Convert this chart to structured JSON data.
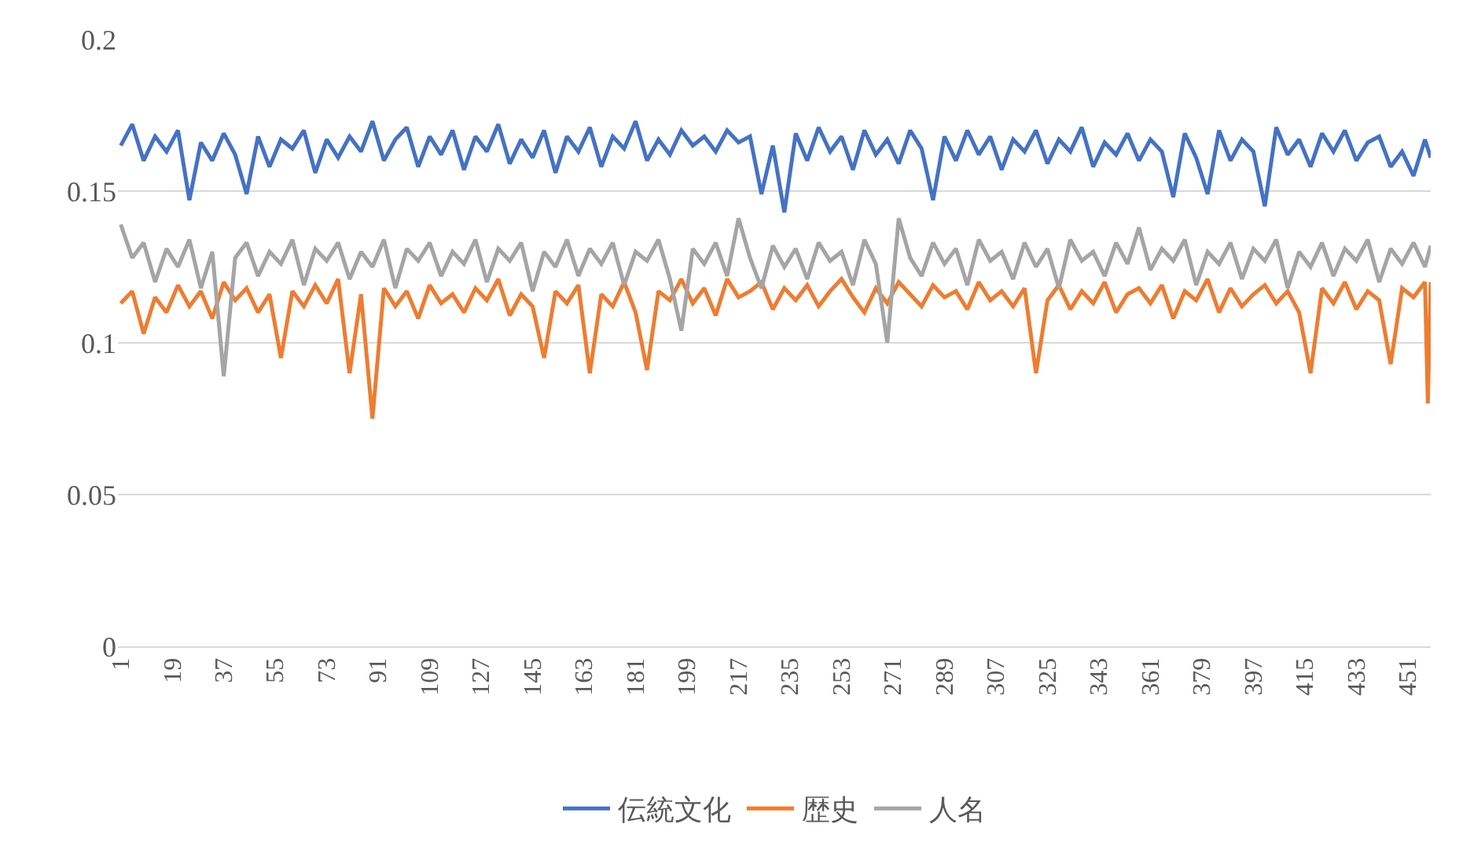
{
  "chart_data": {
    "type": "line",
    "x": [
      1,
      5,
      9,
      13,
      17,
      21,
      25,
      29,
      33,
      37,
      41,
      45,
      49,
      53,
      57,
      61,
      65,
      69,
      73,
      77,
      81,
      85,
      89,
      93,
      97,
      101,
      105,
      109,
      113,
      117,
      121,
      125,
      129,
      133,
      137,
      141,
      145,
      149,
      153,
      157,
      161,
      165,
      169,
      173,
      177,
      181,
      185,
      189,
      193,
      197,
      201,
      205,
      209,
      213,
      217,
      221,
      225,
      229,
      233,
      237,
      241,
      245,
      249,
      253,
      257,
      261,
      265,
      269,
      273,
      277,
      281,
      285,
      289,
      293,
      297,
      301,
      305,
      309,
      313,
      317,
      321,
      325,
      329,
      333,
      337,
      341,
      345,
      349,
      353,
      357,
      361,
      365,
      369,
      373,
      377,
      381,
      385,
      389,
      393,
      397,
      401,
      405,
      409,
      413,
      417,
      421,
      425,
      429,
      433,
      437,
      441,
      445,
      449,
      453,
      457,
      459
    ],
    "series": [
      {
        "name": "伝統文化",
        "color": "#4472c4",
        "values": [
          0.165,
          0.172,
          0.16,
          0.168,
          0.163,
          0.17,
          0.147,
          0.166,
          0.16,
          0.169,
          0.162,
          0.149,
          0.168,
          0.158,
          0.167,
          0.164,
          0.17,
          0.156,
          0.167,
          0.161,
          0.168,
          0.163,
          0.173,
          0.16,
          0.167,
          0.171,
          0.158,
          0.168,
          0.162,
          0.17,
          0.157,
          0.168,
          0.163,
          0.172,
          0.159,
          0.167,
          0.161,
          0.17,
          0.156,
          0.168,
          0.163,
          0.171,
          0.158,
          0.168,
          0.164,
          0.173,
          0.16,
          0.167,
          0.162,
          0.17,
          0.165,
          0.168,
          0.163,
          0.17,
          0.166,
          0.168,
          0.149,
          0.165,
          0.143,
          0.169,
          0.16,
          0.171,
          0.163,
          0.168,
          0.157,
          0.17,
          0.162,
          0.167,
          0.159,
          0.17,
          0.164,
          0.147,
          0.168,
          0.16,
          0.17,
          0.162,
          0.168,
          0.157,
          0.167,
          0.163,
          0.17,
          0.159,
          0.167,
          0.163,
          0.171,
          0.158,
          0.166,
          0.162,
          0.169,
          0.16,
          0.167,
          0.163,
          0.148,
          0.169,
          0.161,
          0.149,
          0.17,
          0.16,
          0.167,
          0.163,
          0.145,
          0.171,
          0.162,
          0.167,
          0.158,
          0.169,
          0.163,
          0.17,
          0.16,
          0.166,
          0.168,
          0.158,
          0.163,
          0.155,
          0.167,
          0.161
        ]
      },
      {
        "name": "歴史",
        "color": "#ed7d31",
        "x": [
          1,
          5,
          9,
          13,
          17,
          21,
          25,
          29,
          33,
          37,
          41,
          45,
          49,
          53,
          57,
          61,
          65,
          69,
          73,
          77,
          81,
          85,
          89,
          93,
          97,
          101,
          105,
          109,
          113,
          117,
          121,
          125,
          129,
          133,
          137,
          141,
          145,
          149,
          153,
          157,
          161,
          165,
          169,
          173,
          177,
          181,
          185,
          189,
          193,
          197,
          201,
          205,
          209,
          213,
          217,
          221,
          225,
          229,
          233,
          237,
          241,
          245,
          249,
          253,
          257,
          261,
          265,
          269,
          273,
          277,
          281,
          285,
          289,
          293,
          297,
          301,
          305,
          309,
          313,
          317,
          321,
          325,
          329,
          333,
          337,
          341,
          345,
          349,
          353,
          357,
          361,
          365,
          369,
          373,
          377,
          381,
          385,
          389,
          393,
          397,
          401,
          405,
          409,
          413,
          417,
          421,
          425,
          429,
          433,
          437,
          441,
          445,
          449,
          453,
          457,
          458,
          459
        ],
        "values": [
          0.113,
          0.117,
          0.103,
          0.115,
          0.11,
          0.119,
          0.112,
          0.117,
          0.108,
          0.12,
          0.114,
          0.118,
          0.11,
          0.116,
          0.095,
          0.117,
          0.112,
          0.119,
          0.113,
          0.121,
          0.09,
          0.116,
          0.075,
          0.118,
          0.112,
          0.117,
          0.108,
          0.119,
          0.113,
          0.116,
          0.11,
          0.118,
          0.114,
          0.121,
          0.109,
          0.116,
          0.112,
          0.095,
          0.117,
          0.113,
          0.119,
          0.09,
          0.116,
          0.112,
          0.12,
          0.11,
          0.091,
          0.117,
          0.114,
          0.121,
          0.113,
          0.118,
          0.109,
          0.121,
          0.115,
          0.117,
          0.12,
          0.111,
          0.118,
          0.114,
          0.119,
          0.112,
          0.117,
          0.121,
          0.115,
          0.11,
          0.118,
          0.113,
          0.12,
          0.116,
          0.112,
          0.119,
          0.115,
          0.117,
          0.111,
          0.12,
          0.114,
          0.117,
          0.112,
          0.118,
          0.09,
          0.114,
          0.119,
          0.111,
          0.117,
          0.113,
          0.12,
          0.11,
          0.116,
          0.118,
          0.113,
          0.119,
          0.108,
          0.117,
          0.114,
          0.121,
          0.11,
          0.118,
          0.112,
          0.116,
          0.119,
          0.113,
          0.117,
          0.11,
          0.09,
          0.118,
          0.113,
          0.12,
          0.111,
          0.117,
          0.114,
          0.093,
          0.118,
          0.115,
          0.12,
          0.08,
          0.12
        ]
      },
      {
        "name": "人名",
        "color": "#a5a5a5",
        "values": [
          0.139,
          0.128,
          0.133,
          0.12,
          0.131,
          0.125,
          0.134,
          0.118,
          0.13,
          0.089,
          0.128,
          0.133,
          0.122,
          0.13,
          0.126,
          0.134,
          0.119,
          0.131,
          0.127,
          0.133,
          0.121,
          0.13,
          0.125,
          0.134,
          0.118,
          0.131,
          0.127,
          0.133,
          0.122,
          0.13,
          0.126,
          0.134,
          0.12,
          0.131,
          0.127,
          0.133,
          0.117,
          0.13,
          0.125,
          0.134,
          0.122,
          0.131,
          0.126,
          0.133,
          0.119,
          0.13,
          0.127,
          0.134,
          0.121,
          0.104,
          0.131,
          0.126,
          0.133,
          0.122,
          0.141,
          0.128,
          0.118,
          0.132,
          0.125,
          0.131,
          0.121,
          0.133,
          0.127,
          0.13,
          0.119,
          0.134,
          0.126,
          0.1,
          0.141,
          0.128,
          0.122,
          0.133,
          0.126,
          0.131,
          0.119,
          0.134,
          0.127,
          0.13,
          0.121,
          0.133,
          0.125,
          0.131,
          0.118,
          0.134,
          0.127,
          0.13,
          0.122,
          0.133,
          0.126,
          0.138,
          0.124,
          0.131,
          0.127,
          0.134,
          0.119,
          0.13,
          0.126,
          0.133,
          0.121,
          0.131,
          0.127,
          0.134,
          0.118,
          0.13,
          0.125,
          0.133,
          0.122,
          0.131,
          0.127,
          0.134,
          0.12,
          0.131,
          0.126,
          0.133,
          0.125,
          0.132
        ]
      }
    ],
    "xlim": [
      0,
      459
    ],
    "xticks": [
      1,
      19,
      37,
      55,
      73,
      91,
      109,
      127,
      145,
      163,
      181,
      199,
      217,
      235,
      253,
      271,
      289,
      307,
      325,
      343,
      361,
      379,
      397,
      415,
      433,
      451
    ],
    "ylim": [
      0,
      0.2
    ],
    "yticks": [
      0,
      0.05,
      0.1,
      0.15,
      0.2
    ],
    "grid": "y",
    "legend": "bottom",
    "marker": "none",
    "line_style": "solid"
  }
}
